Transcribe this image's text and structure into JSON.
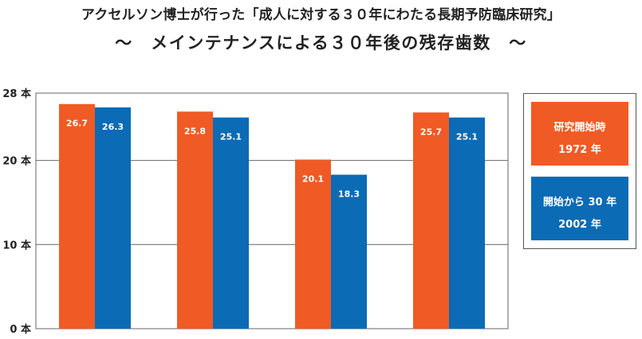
{
  "title_line1": "アクセルソン博士が行った「成人に対する３０年にわたる長期予防臨床研究」",
  "title_line2": "～　メインテナンスによる３０年後の残存歯数　～",
  "colors": {
    "series1": "#f05a24",
    "series2": "#0b6bb5",
    "grid": "#666666"
  },
  "legend": [
    {
      "line1": "研究開始時",
      "line2": "1972 年"
    },
    {
      "line1": "開始から 30 年",
      "line2": "2002 年"
    }
  ],
  "chart_data": {
    "type": "bar",
    "categories": [
      "",
      "",
      "",
      ""
    ],
    "series": [
      {
        "name": "研究開始時 1972 年",
        "values": [
          26.7,
          25.8,
          20.1,
          25.7
        ],
        "labels": [
          "26.7",
          "25.8",
          "20.1",
          "25.7"
        ]
      },
      {
        "name": "開始から 30 年 2002 年",
        "values": [
          26.3,
          25.1,
          18.3,
          25.1
        ],
        "labels": [
          "26.3",
          "25.1",
          "18.3",
          "25.1"
        ]
      }
    ],
    "y_ticks": [
      {
        "value": 0,
        "label": "0 本"
      },
      {
        "value": 10,
        "label": "10 本"
      },
      {
        "value": 20,
        "label": "20 本"
      },
      {
        "value": 28,
        "label": "28 本"
      }
    ],
    "ylim": [
      0,
      28
    ],
    "grid": true,
    "legend_position": "right"
  }
}
